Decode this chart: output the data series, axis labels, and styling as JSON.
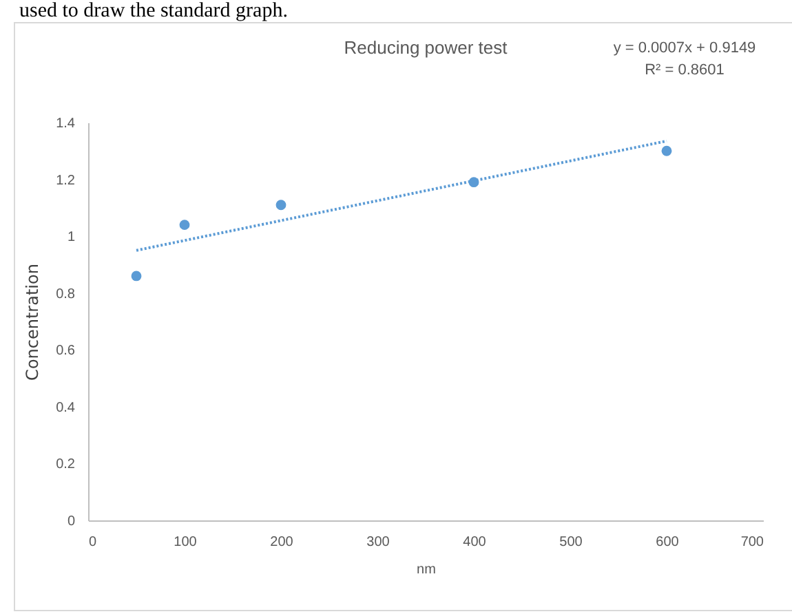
{
  "chart_data": {
    "type": "scatter",
    "title": "Reducing power test",
    "xlabel": "nm",
    "ylabel": "Concentration",
    "annotations": [
      "used to draw the standard graph.",
      "y = 0.0007x + 0.9149",
      "R² = 0.8601"
    ],
    "series": [
      {
        "color": "#5b9bd5",
        "marker": "circle",
        "x": [
          50,
          100,
          200,
          400,
          600
        ],
        "values": [
          0.86,
          1.04,
          1.11,
          1.19,
          1.3
        ]
      },
      {
        "type": "line",
        "color": "#5b9bd5",
        "marker": "none",
        "line_style": "dotted",
        "x": [
          50,
          600
        ],
        "values": [
          0.95,
          1.335
        ]
      }
    ],
    "grid": false,
    "xlim": [
      0,
      700
    ],
    "xticks": [
      0,
      100,
      200,
      300,
      400,
      500,
      600,
      700
    ],
    "ylim": [
      0,
      1.4
    ],
    "yticks": [
      0,
      0.2,
      0.4,
      0.6,
      0.8,
      1,
      1.2,
      1.4
    ]
  }
}
